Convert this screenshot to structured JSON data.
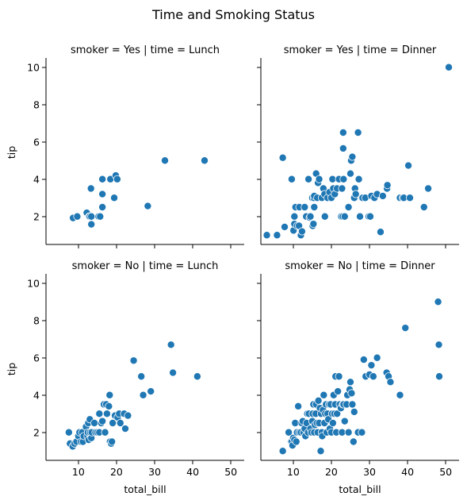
{
  "chart_data": {
    "type": "scatter",
    "title": "Time and Smoking Status",
    "xlabel": "total_bill",
    "ylabel": "tip",
    "xlim": [
      1.5,
      53.5
    ],
    "ylim": [
      0.5,
      10.5
    ],
    "xticks": [
      10,
      20,
      30,
      40,
      50
    ],
    "yticks": [
      2,
      4,
      6,
      8,
      10
    ],
    "grid": false,
    "legend": "none",
    "point_color": "#1f77b4",
    "panels": [
      {
        "id": "yes-lunch",
        "title": "smoker = Yes | time = Lunch",
        "points": [
          [
            8.6,
            1.92
          ],
          [
            9.7,
            2.0
          ],
          [
            12.2,
            2.2
          ],
          [
            12.8,
            2.0
          ],
          [
            13.0,
            2.0
          ],
          [
            13.3,
            3.5
          ],
          [
            13.4,
            2.0
          ],
          [
            13.4,
            1.58
          ],
          [
            15.3,
            2.0
          ],
          [
            15.7,
            2.0
          ],
          [
            16.3,
            2.5
          ],
          [
            16.3,
            4.0
          ],
          [
            16.3,
            3.2
          ],
          [
            18.4,
            4.0
          ],
          [
            19.4,
            3.0
          ],
          [
            19.8,
            4.2
          ],
          [
            20.2,
            4.0
          ],
          [
            28.2,
            2.56
          ],
          [
            32.7,
            5.0
          ],
          [
            43.1,
            5.0
          ]
        ]
      },
      {
        "id": "yes-dinner",
        "title": "smoker = Yes | time = Dinner",
        "points": [
          [
            3.07,
            1.0
          ],
          [
            5.75,
            1.0
          ],
          [
            7.25,
            5.15
          ],
          [
            7.74,
            1.44
          ],
          [
            9.6,
            4.0
          ],
          [
            10.07,
            1.25
          ],
          [
            10.3,
            2.0
          ],
          [
            10.3,
            1.6
          ],
          [
            10.6,
            2.5
          ],
          [
            11.0,
            1.5
          ],
          [
            11.5,
            1.5
          ],
          [
            11.6,
            2.5
          ],
          [
            12.0,
            1.0
          ],
          [
            12.3,
            1.2
          ],
          [
            13.0,
            2.5
          ],
          [
            13.4,
            2.0
          ],
          [
            14.0,
            4.0
          ],
          [
            14.3,
            1.94
          ],
          [
            14.5,
            2.0
          ],
          [
            15.0,
            3.0
          ],
          [
            15.1,
            1.5
          ],
          [
            15.3,
            1.6
          ],
          [
            15.4,
            3.0
          ],
          [
            15.5,
            2.5
          ],
          [
            15.5,
            3.1
          ],
          [
            16.0,
            4.3
          ],
          [
            16.3,
            3.0
          ],
          [
            16.5,
            3.8
          ],
          [
            16.8,
            4.0
          ],
          [
            17.5,
            3.0
          ],
          [
            17.9,
            3.5
          ],
          [
            18.2,
            3.2
          ],
          [
            18.3,
            2.0
          ],
          [
            19.0,
            3.0
          ],
          [
            19.5,
            3.3
          ],
          [
            20.0,
            3.0
          ],
          [
            20.3,
            4.0
          ],
          [
            20.5,
            3.5
          ],
          [
            20.9,
            3.2
          ],
          [
            21.5,
            3.5
          ],
          [
            22.0,
            4.0
          ],
          [
            22.6,
            2.0
          ],
          [
            22.8,
            3.5
          ],
          [
            23.0,
            2.0
          ],
          [
            23.1,
            6.5
          ],
          [
            23.1,
            5.65
          ],
          [
            23.2,
            4.0
          ],
          [
            23.5,
            2.0
          ],
          [
            24.5,
            2.5
          ],
          [
            25.0,
            4.3
          ],
          [
            25.2,
            5.0
          ],
          [
            25.5,
            5.2
          ],
          [
            26.0,
            3.0
          ],
          [
            26.2,
            3.5
          ],
          [
            26.4,
            3.2
          ],
          [
            27.0,
            6.5
          ],
          [
            27.2,
            4.0
          ],
          [
            27.5,
            2.0
          ],
          [
            28.0,
            3.0
          ],
          [
            28.2,
            3.0
          ],
          [
            28.9,
            3.0
          ],
          [
            29.8,
            2.0
          ],
          [
            30.2,
            2.0
          ],
          [
            30.5,
            3.1
          ],
          [
            31.3,
            3.0
          ],
          [
            32.0,
            3.2
          ],
          [
            32.9,
            1.17
          ],
          [
            33.5,
            3.1
          ],
          [
            34.6,
            3.5
          ],
          [
            34.7,
            3.68
          ],
          [
            38.0,
            3.0
          ],
          [
            38.7,
            3.0
          ],
          [
            39.0,
            3.0
          ],
          [
            40.2,
            4.73
          ],
          [
            40.6,
            3.0
          ],
          [
            44.3,
            2.5
          ],
          [
            45.4,
            3.5
          ],
          [
            50.8,
            10.0
          ]
        ]
      },
      {
        "id": "no-lunch",
        "title": "smoker = No | time = Lunch",
        "points": [
          [
            7.5,
            2.0
          ],
          [
            7.8,
            1.4
          ],
          [
            8.5,
            1.25
          ],
          [
            9.0,
            1.4
          ],
          [
            9.5,
            1.5
          ],
          [
            10.0,
            1.8
          ],
          [
            10.3,
            2.0
          ],
          [
            10.7,
            1.5
          ],
          [
            11.0,
            2.0
          ],
          [
            11.2,
            1.5
          ],
          [
            11.4,
            1.8
          ],
          [
            12.0,
            2.3
          ],
          [
            12.4,
            1.8
          ],
          [
            12.5,
            2.0
          ],
          [
            12.6,
            2.5
          ],
          [
            12.7,
            1.6
          ],
          [
            13.0,
            2.7
          ],
          [
            13.1,
            2.0
          ],
          [
            13.4,
            1.7
          ],
          [
            13.5,
            2.0
          ],
          [
            14.2,
            2.5
          ],
          [
            14.5,
            2.0
          ],
          [
            15.0,
            2.0
          ],
          [
            15.5,
            2.0
          ],
          [
            15.5,
            3.0
          ],
          [
            16.0,
            2.5
          ],
          [
            16.3,
            2.6
          ],
          [
            16.7,
            3.5
          ],
          [
            17.0,
            2.0
          ],
          [
            17.3,
            3.5
          ],
          [
            17.5,
            3.0
          ],
          [
            18.0,
            3.4
          ],
          [
            18.2,
            4.0
          ],
          [
            18.3,
            1.5
          ],
          [
            18.6,
            1.4
          ],
          [
            18.8,
            1.5
          ],
          [
            19.0,
            2.5
          ],
          [
            19.6,
            2.9
          ],
          [
            20.3,
            2.8
          ],
          [
            20.7,
            3.0
          ],
          [
            21.0,
            2.5
          ],
          [
            22.0,
            3.0
          ],
          [
            22.3,
            2.2
          ],
          [
            23.0,
            2.9
          ],
          [
            24.5,
            5.85
          ],
          [
            26.5,
            5.0
          ],
          [
            27.0,
            4.0
          ],
          [
            29.0,
            4.2
          ],
          [
            34.3,
            6.7
          ],
          [
            34.8,
            5.2
          ],
          [
            41.2,
            5.0
          ]
        ]
      },
      {
        "id": "no-dinner",
        "title": "smoker = No | time = Dinner",
        "points": [
          [
            7.25,
            1.0
          ],
          [
            8.8,
            2.0
          ],
          [
            9.4,
            1.5
          ],
          [
            9.6,
            1.5
          ],
          [
            9.8,
            1.3
          ],
          [
            10.0,
            1.7
          ],
          [
            10.3,
            1.6
          ],
          [
            10.5,
            2.5
          ],
          [
            10.8,
            1.5
          ],
          [
            11.0,
            2.0
          ],
          [
            11.3,
            3.4
          ],
          [
            11.6,
            2.0
          ],
          [
            12.0,
            2.0
          ],
          [
            12.2,
            2.5
          ],
          [
            12.5,
            2.6
          ],
          [
            12.7,
            2.0
          ],
          [
            13.0,
            2.2
          ],
          [
            13.2,
            1.8
          ],
          [
            13.5,
            2.5
          ],
          [
            13.7,
            3.0
          ],
          [
            13.9,
            2.0
          ],
          [
            14.1,
            3.0
          ],
          [
            14.5,
            2.2
          ],
          [
            14.8,
            2.0
          ],
          [
            15.0,
            2.6
          ],
          [
            15.1,
            3.0
          ],
          [
            15.3,
            3.5
          ],
          [
            15.5,
            2.0
          ],
          [
            15.7,
            2.4
          ],
          [
            15.9,
            3.0
          ],
          [
            16.0,
            3.5
          ],
          [
            16.2,
            2.5
          ],
          [
            16.4,
            2.0
          ],
          [
            16.6,
            3.7
          ],
          [
            16.8,
            2.5
          ],
          [
            17.0,
            3.3
          ],
          [
            17.2,
            1.0
          ],
          [
            17.3,
            3.0
          ],
          [
            17.5,
            2.0
          ],
          [
            17.6,
            1.8
          ],
          [
            17.8,
            3.2
          ],
          [
            18.0,
            4.0
          ],
          [
            18.2,
            2.5
          ],
          [
            18.4,
            3.0
          ],
          [
            18.6,
            3.5
          ],
          [
            18.8,
            2.0
          ],
          [
            19.0,
            3.0
          ],
          [
            19.2,
            2.7
          ],
          [
            19.4,
            3.5
          ],
          [
            19.6,
            2.2
          ],
          [
            19.8,
            3.5
          ],
          [
            20.0,
            2.0
          ],
          [
            20.2,
            3.0
          ],
          [
            20.4,
            2.5
          ],
          [
            20.6,
            4.0
          ],
          [
            20.8,
            3.0
          ],
          [
            21.0,
            3.5
          ],
          [
            21.1,
            5.0
          ],
          [
            21.3,
            2.0
          ],
          [
            21.5,
            3.0
          ],
          [
            21.7,
            4.2
          ],
          [
            22.0,
            5.0
          ],
          [
            22.2,
            3.5
          ],
          [
            22.5,
            3.3
          ],
          [
            22.8,
            2.0
          ],
          [
            23.0,
            3.5
          ],
          [
            23.2,
            3.5
          ],
          [
            23.5,
            2.6
          ],
          [
            24.0,
            3.5
          ],
          [
            24.2,
            4.0
          ],
          [
            24.5,
            2.0
          ],
          [
            24.8,
            4.3
          ],
          [
            25.0,
            4.7
          ],
          [
            25.3,
            4.1
          ],
          [
            25.5,
            3.5
          ],
          [
            25.8,
            1.5
          ],
          [
            26.0,
            3.1
          ],
          [
            27.0,
            2.0
          ],
          [
            28.0,
            2.0
          ],
          [
            28.5,
            5.9
          ],
          [
            29.0,
            5.0
          ],
          [
            30.0,
            5.1
          ],
          [
            30.5,
            5.6
          ],
          [
            31.0,
            5.0
          ],
          [
            32.0,
            6.0
          ],
          [
            34.5,
            5.2
          ],
          [
            35.0,
            5.0
          ],
          [
            35.5,
            4.7
          ],
          [
            38.0,
            4.0
          ],
          [
            39.4,
            7.6
          ],
          [
            48.0,
            9.0
          ],
          [
            48.2,
            6.7
          ],
          [
            48.3,
            5.0
          ]
        ]
      }
    ]
  }
}
